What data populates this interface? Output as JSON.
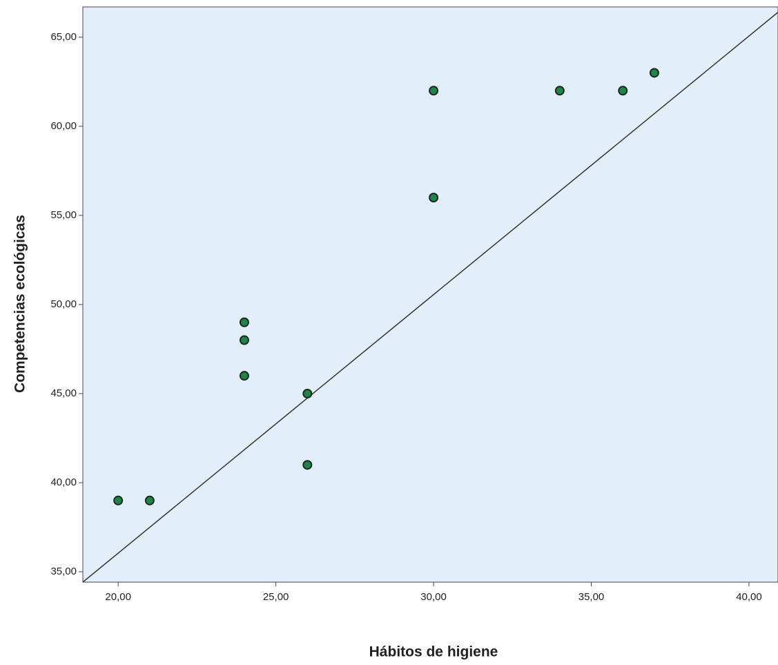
{
  "chart_data": {
    "type": "scatter",
    "x_label": "Hábitos de higiene",
    "y_label": "Competencias ecológicas",
    "x": [
      20,
      21,
      24,
      24,
      24,
      26,
      26,
      30,
      30,
      34,
      36,
      37
    ],
    "series": [
      {
        "color": "#1e8449",
        "values": [
          39,
          39,
          49,
          48,
          46,
          45,
          41,
          62,
          56,
          62,
          62,
          63
        ]
      }
    ],
    "reference_line": {
      "x": [
        18.88,
        40.92
      ],
      "y": [
        34.42,
        66.4
      ],
      "color": "#333333"
    },
    "xlim": [
      18.88,
      40.92
    ],
    "ylim": [
      34.42,
      66.7
    ],
    "xticks": [
      {
        "value": 20,
        "label": "20,00"
      },
      {
        "value": 25,
        "label": "25,00"
      },
      {
        "value": 30,
        "label": "30,00"
      },
      {
        "value": 35,
        "label": "35,00"
      },
      {
        "value": 40,
        "label": "40,00"
      }
    ],
    "yticks": [
      {
        "value": 35,
        "label": "35,00"
      },
      {
        "value": 40,
        "label": "40,00"
      },
      {
        "value": 45,
        "label": "45,00"
      },
      {
        "value": 50,
        "label": "50,00"
      },
      {
        "value": 55,
        "label": "55,00"
      },
      {
        "value": 60,
        "label": "60,00"
      },
      {
        "value": 65,
        "label": "65,00"
      }
    ],
    "background": "#e3eefb"
  }
}
